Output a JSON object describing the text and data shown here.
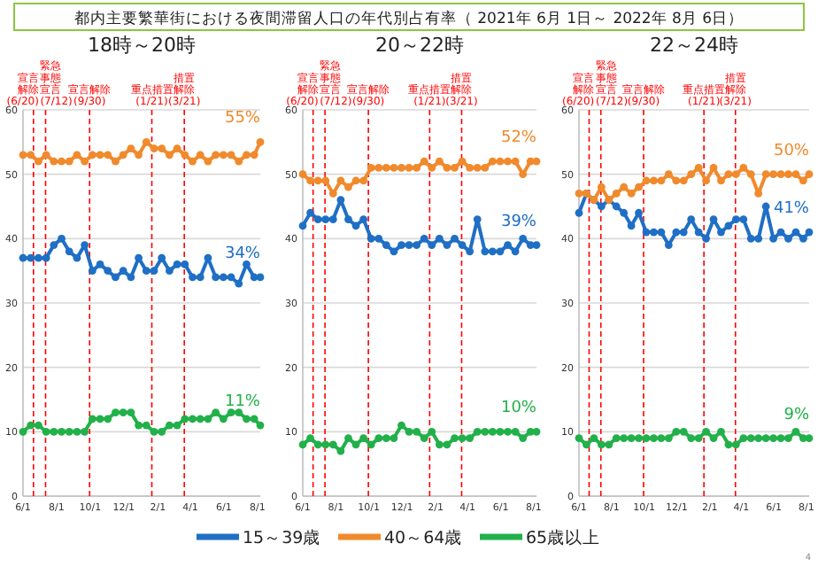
{
  "chart_data": [
    {
      "type": "line",
      "title": "18時～20時",
      "x": [
        "2021-06-01",
        "2021-06-15",
        "2021-06-29",
        "2021-07-13",
        "2021-07-27",
        "2021-08-10",
        "2021-08-24",
        "2021-09-07",
        "2021-09-21",
        "2021-10-05",
        "2021-10-19",
        "2021-11-02",
        "2021-11-16",
        "2021-11-30",
        "2021-12-14",
        "2021-12-28",
        "2022-01-11",
        "2022-01-25",
        "2022-02-08",
        "2022-02-22",
        "2022-03-08",
        "2022-03-22",
        "2022-04-05",
        "2022-04-19",
        "2022-05-03",
        "2022-05-17",
        "2022-05-31",
        "2022-06-14",
        "2022-06-28",
        "2022-07-12",
        "2022-07-26",
        "2022-08-06"
      ],
      "series": [
        {
          "color": "#1f6fc5",
          "values": [
            37,
            37,
            37,
            37,
            39,
            40,
            38,
            37,
            39,
            35,
            36,
            35,
            34,
            35,
            34,
            37,
            35,
            35,
            37,
            35,
            36,
            36,
            34,
            34,
            37,
            34,
            34,
            34,
            33,
            36,
            34,
            34
          ]
        },
        {
          "color": "#f08a2c",
          "values": [
            53,
            53,
            52,
            53,
            52,
            52,
            52,
            53,
            52,
            53,
            53,
            53,
            52,
            53,
            54,
            53,
            55,
            54,
            54,
            53,
            54,
            53,
            52,
            53,
            52,
            53,
            53,
            53,
            52,
            53,
            53,
            55
          ]
        },
        {
          "color": "#22b04a",
          "values": [
            10,
            11,
            11,
            10,
            10,
            10,
            10,
            10,
            10,
            12,
            12,
            12,
            13,
            13,
            13,
            11,
            11,
            10,
            10,
            11,
            11,
            12,
            12,
            12,
            12,
            13,
            12,
            13,
            13,
            12,
            12,
            11
          ]
        }
      ],
      "xlim": [
        "2021-06-01",
        "2022-08-06"
      ],
      "xticks": [
        {
          "value": "2021-06-01",
          "label": "6/1"
        },
        {
          "value": "2021-08-01",
          "label": "8/1"
        },
        {
          "value": "2021-10-01",
          "label": "10/1"
        },
        {
          "value": "2021-12-01",
          "label": "12/1"
        },
        {
          "value": "2022-02-01",
          "label": "2/1"
        },
        {
          "value": "2022-04-01",
          "label": "4/1"
        },
        {
          "value": "2022-06-01",
          "label": "6/1"
        },
        {
          "value": "2022-08-01",
          "label": "8/1"
        }
      ],
      "ylim": [
        0,
        60
      ],
      "yticks": [
        0,
        10,
        20,
        30,
        40,
        50,
        60
      ],
      "grid": "y",
      "marker": "circle",
      "line_style": "solid",
      "legend": false,
      "ref_lines": [
        {
          "axis": "x",
          "value": "2021-06-20",
          "label": "宣言解除(6/20)",
          "color": "#ff0000",
          "line_style": "dashed"
        },
        {
          "axis": "x",
          "value": "2021-07-12",
          "label": "緊急事態宣言(7/12)",
          "color": "#ff0000",
          "line_style": "dashed"
        },
        {
          "axis": "x",
          "value": "2021-09-30",
          "label": "宣言解除(9/30)",
          "color": "#ff0000",
          "line_style": "dashed"
        },
        {
          "axis": "x",
          "value": "2022-01-21",
          "label": "重点措置(1/21)",
          "color": "#ff0000",
          "line_style": "dashed"
        },
        {
          "axis": "x",
          "value": "2022-03-21",
          "label": "措置解除(3/21)",
          "color": "#ff0000",
          "line_style": "dashed"
        }
      ],
      "annotations": [
        "都内主要繁華街における夜間滞留人口の年代別占有率（ 2021年 6月 1日～ 2022年 8月 6日）",
        {
          "text": "34%",
          "x": "2022-08-06",
          "y": 34
        },
        {
          "text": "55%",
          "x": "2022-08-06",
          "y": 55
        },
        {
          "text": "11%",
          "x": "2022-08-06",
          "y": 11
        }
      ]
    },
    {
      "type": "line",
      "title": "20～22時",
      "x": [
        "2021-06-01",
        "2021-06-15",
        "2021-06-29",
        "2021-07-13",
        "2021-07-27",
        "2021-08-10",
        "2021-08-24",
        "2021-09-07",
        "2021-09-21",
        "2021-10-05",
        "2021-10-19",
        "2021-11-02",
        "2021-11-16",
        "2021-11-30",
        "2021-12-14",
        "2021-12-28",
        "2022-01-11",
        "2022-01-25",
        "2022-02-08",
        "2022-02-22",
        "2022-03-08",
        "2022-03-22",
        "2022-04-05",
        "2022-04-19",
        "2022-05-03",
        "2022-05-17",
        "2022-05-31",
        "2022-06-14",
        "2022-06-28",
        "2022-07-12",
        "2022-07-26",
        "2022-08-06"
      ],
      "series": [
        {
          "name": "15～39歳",
          "color": "#1f6fc5",
          "values": [
            42,
            44,
            43,
            43,
            43,
            46,
            43,
            42,
            43,
            40,
            40,
            39,
            38,
            39,
            39,
            39,
            40,
            39,
            40,
            39,
            40,
            39,
            38,
            43,
            38,
            38,
            38,
            39,
            38,
            40,
            39,
            39
          ]
        },
        {
          "name": "40～64歳",
          "color": "#f08a2c",
          "values": [
            50,
            49,
            49,
            49,
            47,
            49,
            48,
            49,
            49,
            51,
            51,
            51,
            51,
            51,
            51,
            51,
            52,
            51,
            52,
            51,
            51,
            52,
            51,
            51,
            51,
            52,
            52,
            52,
            52,
            50,
            52,
            52
          ]
        },
        {
          "name": "65歳以上",
          "color": "#22b04a",
          "values": [
            8,
            9,
            8,
            8,
            8,
            7,
            9,
            8,
            9,
            8,
            9,
            9,
            9,
            11,
            10,
            10,
            9,
            10,
            8,
            8,
            9,
            9,
            9,
            10,
            10,
            10,
            10,
            10,
            10,
            9,
            10,
            10
          ]
        }
      ],
      "xlim": [
        "2021-06-01",
        "2022-08-06"
      ],
      "xticks": [
        {
          "value": "2021-06-01",
          "label": "6/1"
        },
        {
          "value": "2021-08-01",
          "label": "8/1"
        },
        {
          "value": "2021-10-01",
          "label": "10/1"
        },
        {
          "value": "2021-12-01",
          "label": "12/1"
        },
        {
          "value": "2022-02-01",
          "label": "2/1"
        },
        {
          "value": "2022-04-01",
          "label": "4/1"
        },
        {
          "value": "2022-06-01",
          "label": "6/1"
        },
        {
          "value": "2022-08-01",
          "label": "8/1"
        }
      ],
      "ylim": [
        0,
        60
      ],
      "yticks": [
        0,
        10,
        20,
        30,
        40,
        50,
        60
      ],
      "grid": "y",
      "marker": "circle",
      "line_style": "solid",
      "legend": "bottom",
      "ref_lines": [
        {
          "axis": "x",
          "value": "2021-06-20",
          "label": "宣言解除(6/20)",
          "color": "#ff0000",
          "line_style": "dashed"
        },
        {
          "axis": "x",
          "value": "2021-07-12",
          "label": "緊急事態宣言(7/12)",
          "color": "#ff0000",
          "line_style": "dashed"
        },
        {
          "axis": "x",
          "value": "2021-09-30",
          "label": "宣言解除(9/30)",
          "color": "#ff0000",
          "line_style": "dashed"
        },
        {
          "axis": "x",
          "value": "2022-01-21",
          "label": "重点措置(1/21)",
          "color": "#ff0000",
          "line_style": "dashed"
        },
        {
          "axis": "x",
          "value": "2022-03-21",
          "label": "措置解除(3/21)",
          "color": "#ff0000",
          "line_style": "dashed"
        }
      ],
      "annotations": [
        {
          "text": "39%",
          "x": "2022-08-06",
          "y": 39
        },
        {
          "text": "52%",
          "x": "2022-08-06",
          "y": 52
        },
        {
          "text": "10%",
          "x": "2022-08-06",
          "y": 10
        }
      ]
    },
    {
      "type": "line",
      "title": "22～24時",
      "x": [
        "2021-06-01",
        "2021-06-15",
        "2021-06-29",
        "2021-07-13",
        "2021-07-27",
        "2021-08-10",
        "2021-08-24",
        "2021-09-07",
        "2021-09-21",
        "2021-10-05",
        "2021-10-19",
        "2021-11-02",
        "2021-11-16",
        "2021-11-30",
        "2021-12-14",
        "2021-12-28",
        "2022-01-11",
        "2022-01-25",
        "2022-02-08",
        "2022-02-22",
        "2022-03-08",
        "2022-03-22",
        "2022-04-05",
        "2022-04-19",
        "2022-05-03",
        "2022-05-17",
        "2022-05-31",
        "2022-06-14",
        "2022-06-28",
        "2022-07-12",
        "2022-07-26",
        "2022-08-06"
      ],
      "series": [
        {
          "color": "#1f6fc5",
          "values": [
            44,
            47,
            46,
            45,
            46,
            45,
            44,
            42,
            44,
            41,
            41,
            41,
            39,
            41,
            41,
            43,
            41,
            40,
            43,
            41,
            42,
            43,
            43,
            40,
            40,
            45,
            40,
            41,
            40,
            41,
            40,
            41
          ]
        },
        {
          "color": "#f08a2c",
          "values": [
            47,
            47,
            46,
            48,
            46,
            47,
            48,
            47,
            48,
            49,
            49,
            49,
            50,
            49,
            49,
            50,
            51,
            49,
            51,
            49,
            50,
            50,
            51,
            50,
            47,
            50,
            50,
            50,
            50,
            50,
            49,
            50
          ]
        },
        {
          "color": "#22b04a",
          "values": [
            9,
            8,
            9,
            8,
            8,
            9,
            9,
            9,
            9,
            9,
            9,
            9,
            9,
            10,
            10,
            9,
            9,
            10,
            9,
            10,
            8,
            8,
            9,
            9,
            9,
            9,
            9,
            9,
            9,
            10,
            9,
            9
          ]
        }
      ],
      "xlim": [
        "2021-06-01",
        "2022-08-06"
      ],
      "xticks": [
        {
          "value": "2021-06-01",
          "label": "6/1"
        },
        {
          "value": "2021-08-01",
          "label": "8/1"
        },
        {
          "value": "2021-10-01",
          "label": "10/1"
        },
        {
          "value": "2021-12-01",
          "label": "12/1"
        },
        {
          "value": "2022-02-01",
          "label": "2/1"
        },
        {
          "value": "2022-04-01",
          "label": "4/1"
        },
        {
          "value": "2022-06-01",
          "label": "6/1"
        },
        {
          "value": "2022-08-01",
          "label": "8/1"
        }
      ],
      "ylim": [
        0,
        60
      ],
      "yticks": [
        0,
        10,
        20,
        30,
        40,
        50,
        60
      ],
      "grid": "y",
      "marker": "circle",
      "line_style": "solid",
      "legend": false,
      "ref_lines": [
        {
          "axis": "x",
          "value": "2021-06-20",
          "label": "宣言解除(6/20)",
          "color": "#ff0000",
          "line_style": "dashed"
        },
        {
          "axis": "x",
          "value": "2021-07-12",
          "label": "緊急事態宣言(7/12)",
          "color": "#ff0000",
          "line_style": "dashed"
        },
        {
          "axis": "x",
          "value": "2021-09-30",
          "label": "宣言解除(9/30)",
          "color": "#ff0000",
          "line_style": "dashed"
        },
        {
          "axis": "x",
          "value": "2022-01-21",
          "label": "重点措置(1/21)",
          "color": "#ff0000",
          "line_style": "dashed"
        },
        {
          "axis": "x",
          "value": "2022-03-21",
          "label": "措置解除(3/21)",
          "color": "#ff0000",
          "line_style": "dashed"
        }
      ],
      "annotations": [
        {
          "text": "41%",
          "x": "2022-08-06",
          "y": 41
        },
        {
          "text": "50%",
          "x": "2022-08-06",
          "y": 50
        },
        {
          "text": "9%",
          "x": "2022-08-06",
          "y": 9
        },
        "4"
      ]
    }
  ]
}
